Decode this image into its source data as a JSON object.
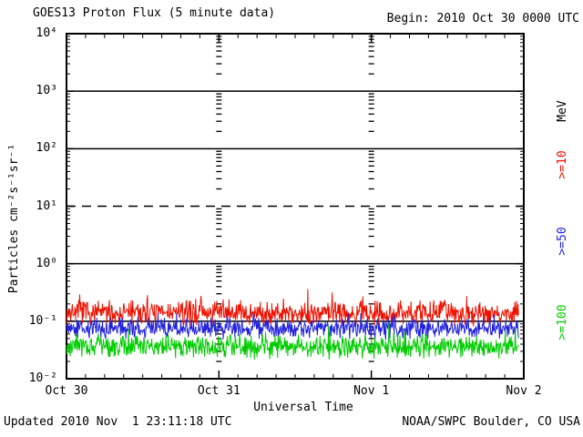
{
  "header": {
    "title": "GOES13 Proton Flux (5 minute data)",
    "begin_label": "Begin: 2010 Oct 30 0000 UTC"
  },
  "footer": {
    "updated": "Updated 2010 Nov  1 23:11:18 UTC",
    "credit": "NOAA/SWPC Boulder, CO USA"
  },
  "chart_data": {
    "type": "line",
    "title": "GOES13 Proton Flux (5 minute data)",
    "xlabel": "Universal Time",
    "ylabel": "Particles cm⁻²s⁻¹sr⁻¹",
    "right_axis_label": "MeV",
    "background": "#ffffff",
    "axis_color": "#000000",
    "ylim": [
      0.01,
      10000
    ],
    "y_scale": "log",
    "y_ticks": [
      {
        "exponent": 4,
        "label": "10⁴"
      },
      {
        "exponent": 3,
        "label": "10³"
      },
      {
        "exponent": 2,
        "label": "10²"
      },
      {
        "exponent": 1,
        "label": "10¹"
      },
      {
        "exponent": 0,
        "label": "10⁰"
      },
      {
        "exponent": -1,
        "label": "10⁻¹"
      },
      {
        "exponent": -2,
        "label": "10⁻²"
      }
    ],
    "x_span_days": 3,
    "x_ticks": [
      {
        "day": 0,
        "label": "Oct 30"
      },
      {
        "day": 1,
        "label": "Oct 31"
      },
      {
        "day": 2,
        "label": "Nov 1"
      },
      {
        "day": 3,
        "label": "Nov 2"
      }
    ],
    "minor_time_tick_hours": 3,
    "day_gridlines": [
      1,
      2
    ],
    "hlines": [
      {
        "level": 1000,
        "style": "solid"
      },
      {
        "level": 100,
        "style": "solid"
      },
      {
        "level": 10,
        "style": "dashed"
      },
      {
        "level": 1,
        "style": "solid"
      },
      {
        "level": 0.1,
        "style": "solid"
      }
    ],
    "cadence_minutes": 5,
    "data_end_day": 2.966,
    "seed": 7,
    "series": [
      {
        "name": ">=10",
        "units": "MeV",
        "color": "#ee1100",
        "approx_flux_range": [
          0.07,
          0.43
        ],
        "typical_flux": 0.14,
        "log10_base": -0.85,
        "log10_jitter": 0.25,
        "log10_min": -1.15,
        "log10_max": -0.44,
        "spike_probability": 0.02,
        "spike_amount": 0.22,
        "event_spike": {
          "day": 1.584,
          "log10": -0.37
        }
      },
      {
        "name": ">=50",
        "units": "MeV",
        "color": "#2222dd",
        "approx_flux_range": [
          0.044,
          0.14
        ],
        "typical_flux": 0.076,
        "log10_base": -1.12,
        "log10_jitter": 0.21,
        "log10_min": -1.36,
        "log10_max": -0.86,
        "spike_probability": 0.02,
        "spike_amount": 0.18
      },
      {
        "name": ">=100",
        "units": "MeV",
        "color": "#00cc00",
        "approx_flux_range": [
          0.02,
          0.095
        ],
        "typical_flux": 0.038,
        "log10_base": -1.44,
        "log10_jitter": 0.24,
        "log10_min": -1.68,
        "log10_max": -1.02,
        "spike_probability": 0.02,
        "spike_amount": 0.2
      }
    ]
  }
}
